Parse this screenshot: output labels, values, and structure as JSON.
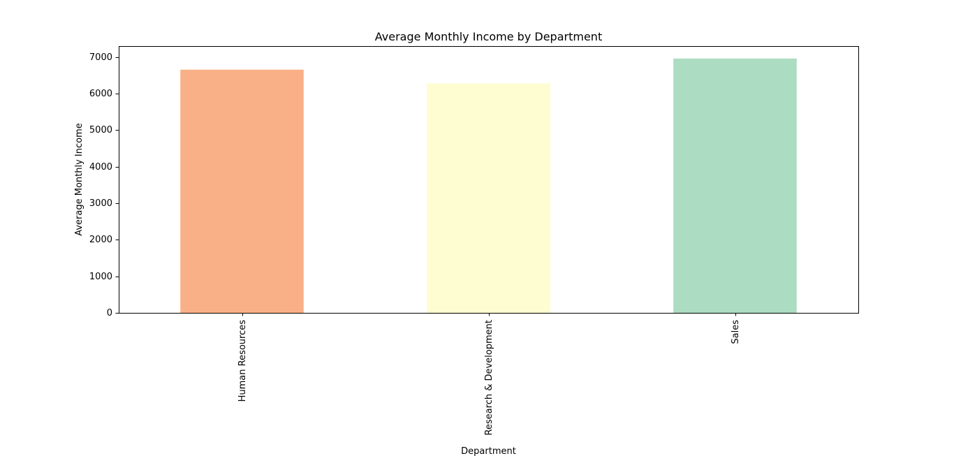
{
  "chart_data": {
    "type": "bar",
    "title": "Average Monthly Income by Department",
    "xlabel": "Department",
    "ylabel": "Average Monthly Income",
    "categories": [
      "Human Resources",
      "Research & Development",
      "Sales"
    ],
    "values": [
      6655,
      6281,
      6959
    ],
    "colors": [
      "#f9b087",
      "#fefdd1",
      "#acdcc1"
    ],
    "ylim": [
      0,
      7300
    ],
    "yticks": [
      0,
      1000,
      2000,
      3000,
      4000,
      5000,
      6000,
      7000
    ],
    "x_tick_rotation": "vertical",
    "grid": false,
    "legend": "none"
  }
}
